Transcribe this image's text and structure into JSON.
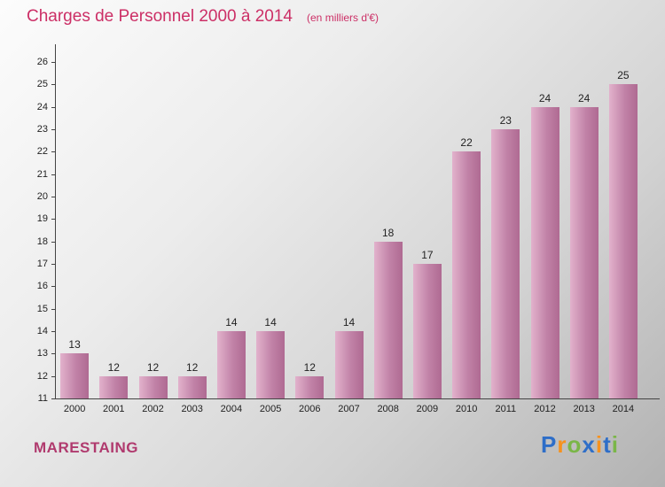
{
  "header": {
    "title": "Charges de Personnel 2000 à 2014",
    "subtitle": "(en milliers d'€)"
  },
  "footer": {
    "company": "MARESTAING",
    "logo": {
      "name": "Proxiti",
      "letters": [
        {
          "ch": "P",
          "color": "#2e6ec8"
        },
        {
          "ch": "r",
          "color": "#f6921e"
        },
        {
          "ch": "o",
          "color": "#7ab648"
        },
        {
          "ch": "x",
          "color": "#2e6ec8"
        },
        {
          "ch": "i",
          "color": "#f6921e"
        },
        {
          "ch": "t",
          "color": "#2e6ec8"
        },
        {
          "ch": "i",
          "color": "#7ab648"
        }
      ]
    }
  },
  "chart_data": {
    "type": "bar",
    "title": "Charges de Personnel 2000 à 2014",
    "subtitle": "(en milliers d'€)",
    "categories": [
      "2000",
      "2001",
      "2002",
      "2003",
      "2004",
      "2005",
      "2006",
      "2007",
      "2008",
      "2009",
      "2010",
      "2011",
      "2012",
      "2013",
      "2014"
    ],
    "values": [
      13,
      12,
      12,
      12,
      14,
      14,
      12,
      14,
      18,
      17,
      22,
      23,
      24,
      24,
      25
    ],
    "xlabel": "",
    "ylabel": "",
    "ylim": [
      11,
      26
    ],
    "ytick_step": 1,
    "grid": false,
    "legend": "none",
    "bar_colors": [
      "#e2b2cc",
      "#c182a7",
      "#af6a92"
    ],
    "value_label_color": "#222222",
    "axis_color": "#444444",
    "tick_label_color": "#222222",
    "title_color": "#cc2f66",
    "company_color": "#b03a6e"
  }
}
